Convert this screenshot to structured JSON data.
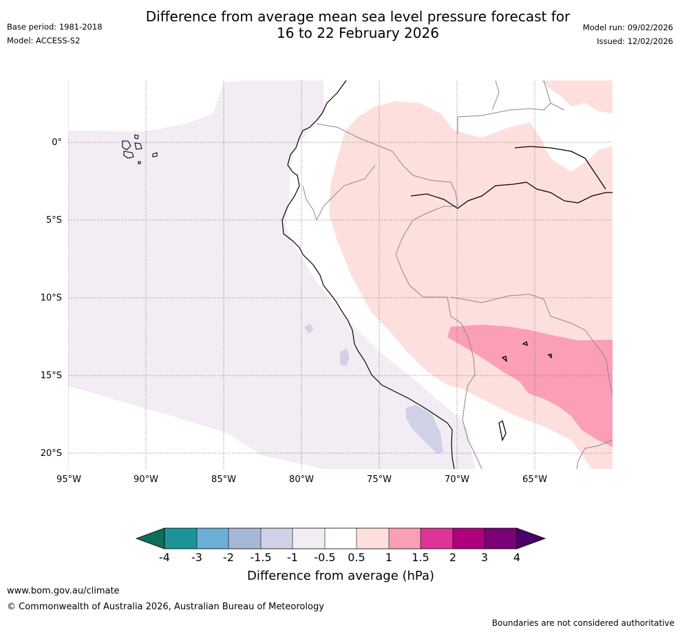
{
  "header": {
    "title_line1": "Difference from average mean sea level pressure forecast for",
    "title_line2": "16 to 22 February 2026",
    "base_period": "Base period: 1981-2018",
    "model": "Model: ACCESS-S2",
    "model_run": "Model run: 09/02/2026",
    "issued": "Issued: 12/02/2026"
  },
  "map": {
    "lat_labels": [
      "0°",
      "5°S",
      "10°S",
      "15°S",
      "20°S"
    ],
    "lon_labels": [
      "95°W",
      "90°W",
      "85°W",
      "80°W",
      "75°W",
      "70°W",
      "65°W"
    ],
    "region": "Western South America and Eastern Pacific"
  },
  "legend": {
    "title": "Difference from average (hPa)",
    "tick_labels": [
      "-4",
      "-3",
      "-2",
      "-1.5",
      "-1",
      "-0.5",
      "0.5",
      "1",
      "1.5",
      "2",
      "3",
      "4"
    ],
    "colors": {
      "below_min": "#0d6e5c",
      "c1": "#1a9499",
      "c2": "#6baed6",
      "c3": "#a6b8d8",
      "c4": "#d0d1e6",
      "c5": "#f3ecf5",
      "c6": "#ffffff",
      "c7": "#fde0dd",
      "c8": "#fa9fb5",
      "c9": "#dd3497",
      "c10": "#ae017e",
      "c11": "#7a0177",
      "above_max": "#49006a"
    }
  },
  "footer": {
    "url": "www.bom.gov.au/climate",
    "copyright": "© Commonwealth of Australia 2026, Australian Bureau of Meteorology",
    "note": "Boundaries are not considered authoritative"
  }
}
